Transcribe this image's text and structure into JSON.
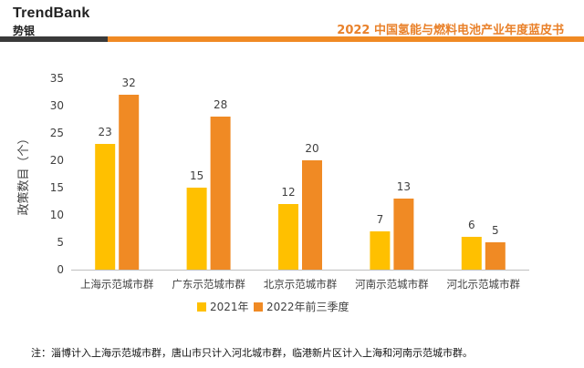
{
  "header": {
    "brand_en": "TrendBank",
    "brand_cn": "势银",
    "report_title": "2022 中国氢能与燃料电池产业年度蓝皮书"
  },
  "colors": {
    "accent": "#F08A24",
    "series_2021": "#FFC000",
    "series_2022": "#F08A24",
    "axis": "#bfbfbf",
    "text": "#404040"
  },
  "chart_data": {
    "type": "bar",
    "title": "",
    "xlabel": "",
    "ylabel": "政策数目（个）",
    "ylim": [
      0,
      35
    ],
    "yticks": [
      0,
      5,
      10,
      15,
      20,
      25,
      30,
      35
    ],
    "grid": false,
    "legend_position": "bottom",
    "categories": [
      "上海示范城市群",
      "广东示范城市群",
      "北京示范城市群",
      "河南示范城市群",
      "河北示范城市群"
    ],
    "series": [
      {
        "name": "2021年",
        "color": "#FFC000",
        "values": [
          23,
          15,
          12,
          7,
          6
        ]
      },
      {
        "name": "2022年前三季度",
        "color": "#F08A24",
        "values": [
          32,
          28,
          20,
          13,
          5
        ]
      }
    ]
  },
  "footnote": "注：淄博计入上海示范城市群，唐山市只计入河北城市群，临港新片区计入上海和河南示范城市群。"
}
